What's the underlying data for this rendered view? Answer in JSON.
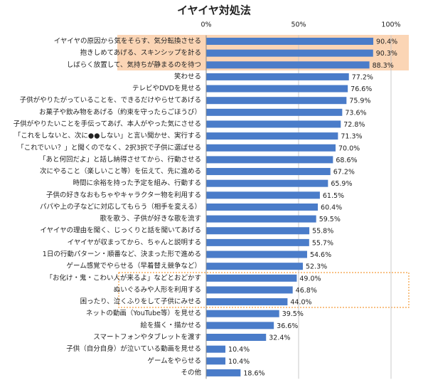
{
  "chart_data": {
    "type": "hbar",
    "title": "イヤイヤ対処法",
    "categories": [
      "イヤイヤの原因から気をそらす、気分転換させる",
      "抱きしめてあげる、スキンシップを計る",
      "しばらく放置して、気持ちが静まるのを待つ",
      "笑わせる",
      "テレビやDVDを見せる",
      "子供がやりたがっていることを、できるだけやらせてあげる",
      "お菓子や飲み物をあげる（約束を守ったらごほうび）",
      "子供がやりたいことを手伝ってあげ、本人がやった気にさせる",
      "「これをしないと、次に●●しない」と言い聞かせ、実行する",
      "「これでいい？」と聞くのでなく、2択3択で子供に選ばせる",
      "「あと何回だよ」と話し納得させてから、行動させる",
      "次にやること（楽しいこと等）を伝えて、先に進める",
      "時間に余裕を持った予定を組み、行動する",
      "子供の好きなおもちゃやキャラクター物を利用する",
      "パパや上の子などに対応してもらう（相手を変える）",
      "歌を歌う、子供が好きな歌を流す",
      "イヤイヤの理由を聞く、じっくりと話を聞いてあげる",
      "イヤイヤが収まってから、ちゃんと説明する",
      "1日の行動パターン・順番など、決まった形で進める",
      "ゲーム感覚でやらせる（早着替え競争など）",
      "「お化け・鬼・こわい人が来るよ」などとおどかす",
      "ぬいぐるみや人形を利用する",
      "困ったり、泣くふりをして子供にみせる",
      "ネットの動画（YouTube等）を見せる",
      "絵を描く・描かせる",
      "スマートフォンやタブレットを渡す",
      "子供（自分自身）が泣いている動画を見せる",
      "ゲームをやらせる",
      "その他"
    ],
    "values": [
      90.4,
      90.3,
      88.3,
      77.2,
      76.6,
      75.9,
      73.6,
      72.8,
      71.3,
      70.0,
      68.6,
      67.2,
      65.9,
      61.5,
      60.4,
      59.5,
      55.8,
      55.7,
      54.6,
      52.3,
      49.0,
      46.8,
      44.0,
      39.5,
      36.6,
      32.4,
      10.4,
      10.4,
      18.6
    ],
    "value_labels": [
      "90.4%",
      "90.3%",
      "88.3%",
      "77.2%",
      "76.6%",
      "75.9%",
      "73.6%",
      "72.8%",
      "71.3%",
      "70.0%",
      "68.6%",
      "67.2%",
      "65.9%",
      "61.5%",
      "60.4%",
      "59.5%",
      "55.8%",
      "55.7%",
      "54.6%",
      "52.3%",
      "49.0%",
      "46.8%",
      "44.0%",
      "39.5%",
      "36.6%",
      "32.4%",
      "10.4%",
      "10.4%",
      "18.6%"
    ],
    "color": "#4a7cc9",
    "xlim": [
      0,
      100
    ],
    "xticks": [
      {
        "value": 0,
        "label": "0%"
      },
      {
        "value": 50,
        "label": "50%"
      },
      {
        "value": 100,
        "label": "100%"
      }
    ],
    "grid": true
  }
}
